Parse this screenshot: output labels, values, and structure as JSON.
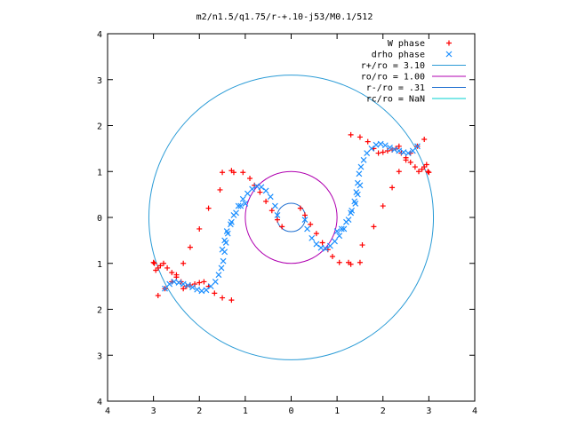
{
  "chart_data": {
    "type": "scatter",
    "title": "m2/n1.5/q1.75/r-+.10-j53/M0.1/512",
    "xlabel": "",
    "ylabel": "",
    "xlim": [
      -4,
      4
    ],
    "ylim": [
      -4,
      4
    ],
    "x_ticks": [
      "4",
      "3",
      "2",
      "1",
      "0",
      "1",
      "2",
      "3",
      "4"
    ],
    "y_ticks": [
      "4",
      "3",
      "2",
      "1",
      "0",
      "1",
      "2",
      "3",
      "4"
    ],
    "grid": false,
    "legend_position": "top-right",
    "legend": [
      {
        "label": "W phase",
        "marker": "+",
        "color": "#ff0000"
      },
      {
        "label": "drho phase",
        "marker": "x",
        "color": "#1e90ff"
      },
      {
        "label": "r+/ro = 3.10",
        "marker": "line",
        "color": "#2a9bd6"
      },
      {
        "label": "ro/ro = 1.00",
        "marker": "line",
        "color": "#b000b0"
      },
      {
        "label": "r-/ro = .31",
        "marker": "line",
        "color": "#1f6fd0"
      },
      {
        "label": "rc/ro = NaN",
        "marker": "line",
        "color": "#00d0d0"
      }
    ],
    "circles": [
      {
        "name": "r+/ro = 3.10",
        "radius": 3.1,
        "color": "#2a9bd6"
      },
      {
        "name": "ro/ro = 1.00",
        "radius": 1.0,
        "color": "#b000b0"
      },
      {
        "name": "r-/ro = .31",
        "radius": 0.31,
        "color": "#1f6fd0"
      }
    ],
    "series": [
      {
        "name": "W phase",
        "color": "#ff0000",
        "marker": "+",
        "x": [
          -1.5,
          -1.3,
          -1.05,
          -0.9,
          -0.8,
          -0.68,
          -0.55,
          -0.42,
          -0.3,
          -0.2,
          -1.3,
          -1.5,
          -1.67,
          -1.8,
          -1.9,
          -2.0,
          -2.1,
          -2.2,
          -2.28,
          -2.35,
          -2.4,
          -2.5,
          -2.6,
          -2.7,
          -2.78,
          -2.85,
          -2.9,
          -2.95,
          -2.98,
          -3.0,
          -1.25,
          -1.55,
          -1.8,
          -2.0,
          -2.2,
          -2.35,
          -2.5,
          -2.6,
          -2.75,
          -2.9,
          1.5,
          1.3,
          1.05,
          0.9,
          0.8,
          0.68,
          0.55,
          0.42,
          0.3,
          0.2,
          1.3,
          1.5,
          1.67,
          1.8,
          1.9,
          2.0,
          2.1,
          2.2,
          2.28,
          2.35,
          2.4,
          2.5,
          2.6,
          2.7,
          2.78,
          2.85,
          2.9,
          2.95,
          2.98,
          3.0,
          1.25,
          1.55,
          1.8,
          2.0,
          2.2,
          2.35,
          2.5,
          2.6,
          2.75,
          2.9
        ],
        "y": [
          0.98,
          1.02,
          0.98,
          0.85,
          0.7,
          0.55,
          0.35,
          0.15,
          -0.05,
          -0.2,
          -1.8,
          -1.75,
          -1.65,
          -1.5,
          -1.4,
          -1.42,
          -1.45,
          -1.47,
          -1.5,
          -1.55,
          -1.4,
          -1.3,
          -1.2,
          -1.1,
          -1.0,
          -1.05,
          -1.1,
          -1.15,
          -1.0,
          -0.98,
          0.98,
          0.6,
          0.2,
          -0.25,
          -0.65,
          -1.0,
          -1.25,
          -1.4,
          -1.55,
          -1.7,
          -0.98,
          -1.02,
          -0.98,
          -0.85,
          -0.7,
          -0.55,
          -0.35,
          -0.15,
          0.05,
          0.2,
          1.8,
          1.75,
          1.65,
          1.5,
          1.4,
          1.42,
          1.45,
          1.47,
          1.5,
          1.55,
          1.4,
          1.3,
          1.2,
          1.1,
          1.0,
          1.05,
          1.1,
          1.15,
          1.0,
          0.98,
          -0.98,
          -0.6,
          -0.2,
          0.25,
          0.65,
          1.0,
          1.25,
          1.4,
          1.55,
          1.7
        ]
      },
      {
        "name": "drho phase",
        "color": "#1e90ff",
        "marker": "x",
        "x": [
          -0.3,
          -0.35,
          -0.45,
          -0.55,
          -0.65,
          -0.75,
          -0.85,
          -0.95,
          -1.05,
          -1.15,
          -1.25,
          -1.32,
          -1.38,
          -1.42,
          -1.45,
          -1.48,
          -1.52,
          -1.58,
          -1.65,
          -1.75,
          -1.85,
          -1.95,
          -2.05,
          -2.15,
          -2.25,
          -2.35,
          -2.45,
          -2.55,
          -2.65,
          -2.75,
          -1.0,
          -1.1,
          -1.2,
          -1.3,
          -1.4,
          -1.45,
          -1.5,
          0.3,
          0.35,
          0.45,
          0.55,
          0.65,
          0.75,
          0.85,
          0.95,
          1.05,
          1.15,
          1.25,
          1.32,
          1.38,
          1.42,
          1.45,
          1.48,
          1.52,
          1.58,
          1.65,
          1.75,
          1.85,
          1.95,
          2.05,
          2.15,
          2.25,
          2.35,
          2.45,
          2.55,
          2.65,
          2.75,
          1.0,
          1.1,
          1.2,
          1.3,
          1.4,
          1.45,
          1.5
        ],
        "y": [
          0.05,
          0.25,
          0.45,
          0.58,
          0.66,
          0.68,
          0.62,
          0.52,
          0.4,
          0.25,
          0.05,
          -0.15,
          -0.35,
          -0.55,
          -0.75,
          -0.95,
          -1.1,
          -1.25,
          -1.4,
          -1.5,
          -1.58,
          -1.6,
          -1.57,
          -1.52,
          -1.48,
          -1.45,
          -1.42,
          -1.4,
          -1.45,
          -1.55,
          0.3,
          0.25,
          0.1,
          -0.1,
          -0.3,
          -0.5,
          -0.7,
          -0.05,
          -0.25,
          -0.45,
          -0.58,
          -0.66,
          -0.68,
          -0.62,
          -0.52,
          -0.4,
          -0.25,
          -0.05,
          0.15,
          0.35,
          0.55,
          0.75,
          0.95,
          1.1,
          1.25,
          1.4,
          1.5,
          1.58,
          1.6,
          1.57,
          1.52,
          1.48,
          1.45,
          1.42,
          1.4,
          1.45,
          1.55,
          -0.3,
          -0.25,
          -0.1,
          0.1,
          0.3,
          0.5,
          0.7
        ]
      }
    ]
  }
}
